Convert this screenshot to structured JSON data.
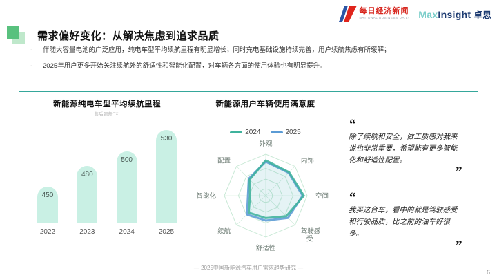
{
  "header": {
    "nbd": {
      "title": "每日经济新闻",
      "subtitle": "NATIONAL BUSINESS DAILY"
    },
    "maxinsight": {
      "max": "Max",
      "insight": "Insight",
      "cn": "卓思"
    }
  },
  "title": "需求偏好变化：从解决焦虑到追求品质",
  "bullets": [
    {
      "marker": "-",
      "text": "伴随大容量电池的广泛应用，纯电车型平均续航里程有明显增长；同时充电基础设施持续完善，用户续航焦虑有所缓解；"
    },
    {
      "marker": "-",
      "text": "2025年用户更多开始关注续航外的舒适性和智能化配置，对车辆各方面的使用体验也有明显提升。"
    }
  ],
  "chart_data": [
    {
      "type": "bar",
      "title": "新能源纯电车型平均续航里程",
      "subtitle": "售后服务CXI",
      "categories": [
        "2022",
        "2023",
        "2024",
        "2025"
      ],
      "values": [
        450,
        480,
        500,
        530
      ],
      "bar_color": "#c9f0e4",
      "value_label_color": "#4a5a55",
      "ylim": [
        400,
        560
      ],
      "value_labels_inside_bar_top": true
    },
    {
      "type": "radar",
      "title": "新能源用户车辆使用满意度",
      "categories": [
        "外观",
        "内饰",
        "空间",
        "驾驶感受",
        "舒适性",
        "续航",
        "智能化",
        "配置"
      ],
      "series": [
        {
          "name": "2024",
          "color": "#3fb29c",
          "values": [
            0.85,
            0.8,
            0.92,
            0.7,
            0.54,
            0.58,
            0.38,
            0.55
          ]
        },
        {
          "name": "2025",
          "color": "#5b9bd5",
          "values": [
            0.82,
            0.78,
            0.89,
            0.76,
            0.6,
            0.64,
            0.43,
            0.58
          ]
        }
      ],
      "grid_color": "#c9e9d6",
      "legend_position": "top",
      "value_scale": [
        0,
        1
      ]
    }
  ],
  "quotes": [
    {
      "open": "“",
      "text": "除了续航和安全，做工质感对我来说也非常重要，希望能有更多智能化和舒适性配置。",
      "close": "”"
    },
    {
      "open": "“",
      "text": "我买这台车，看中的就是驾驶感受和行驶品质，比之前的油车好很多。",
      "close": "”"
    }
  ],
  "footer": {
    "source": "— 2025中国新能源汽车用户需求趋势研究 —",
    "page": "6"
  },
  "colors": {
    "accent_green": "#59c17e",
    "accent_green_light": "#bfe8cb",
    "divider_teal": "#35a79b",
    "nbd_red": "#d7261e",
    "nbd_blue": "#2b55a5",
    "max_teal": "#79cdc9",
    "max_navy": "#1e3c72"
  }
}
